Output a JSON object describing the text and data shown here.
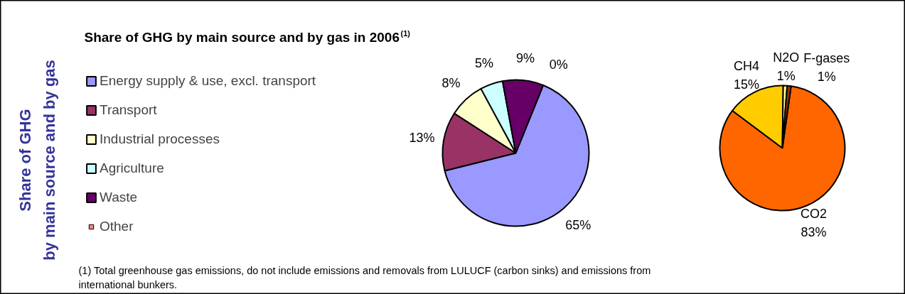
{
  "chart_data": [
    {
      "type": "pie",
      "title": "Share of GHG by main source and by gas in 2006$^{(1)}$",
      "ylabel": "Share of GHG\nby main source and by gas",
      "categories": [
        "Energy supply & use, excl. transport",
        "Transport",
        "Industrial processes",
        "Agriculture",
        "Waste",
        "Other"
      ],
      "values": [
        65,
        13,
        8,
        5,
        9,
        0
      ],
      "value_labels": [
        "65%",
        "13%",
        "8%",
        "5%",
        "9%",
        "0%"
      ],
      "colors": [
        "#9999ff",
        "#993366",
        "#ffffcc",
        "#ccffff",
        "#660066",
        "#ff8080"
      ],
      "legend": "left",
      "annotations": [
        "(1) Total greenhouse gas emissions, do not include emissions and removals from LULUCF (carbon sinks) and emissions from international bunkers."
      ]
    },
    {
      "type": "pie",
      "categories": [
        "CO2",
        "CH4",
        "N2O",
        "F-gases"
      ],
      "values": [
        83,
        15,
        1,
        1
      ],
      "value_labels": [
        "83%",
        "15%",
        "1%",
        "1%"
      ],
      "colors": [
        "#ff6600",
        "#ffcc00",
        "#ffff99",
        "#993300"
      ],
      "legend": false
    }
  ]
}
